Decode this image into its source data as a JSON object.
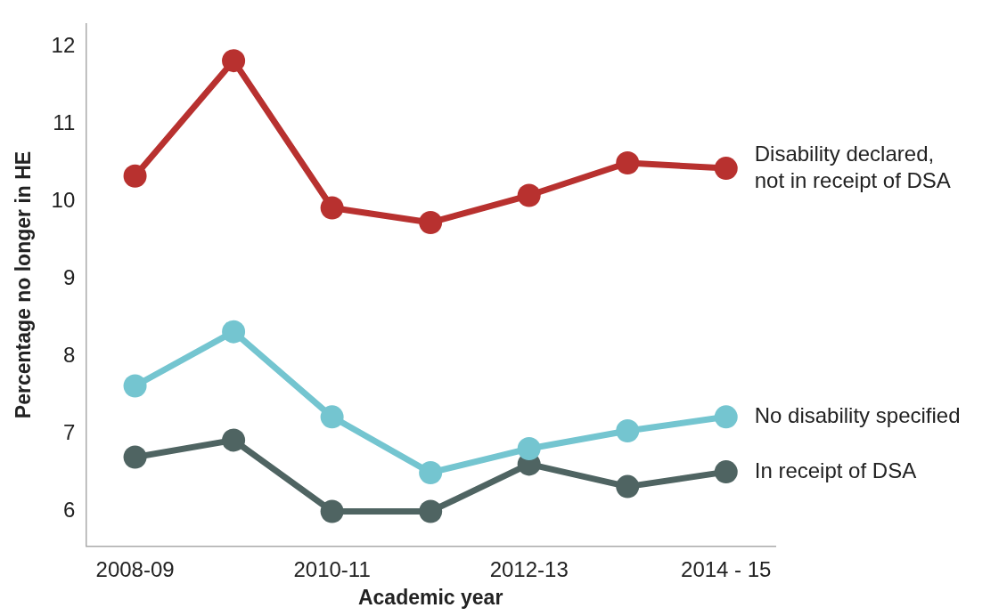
{
  "chart_data": {
    "type": "line",
    "xlabel": "Academic year",
    "ylabel": "Percentage no longer in HE",
    "categories": [
      "2008-09",
      null,
      "2010-11",
      null,
      "2012-13",
      null,
      "2014 - 15"
    ],
    "ylim": [
      5.55,
      12.3
    ],
    "yticks": [
      6,
      7,
      8,
      9,
      10,
      11,
      12
    ],
    "grid": false,
    "legend": false,
    "marker": "circle",
    "line_style": "solid",
    "series": [
      {
        "name": "Disability declared, not in receipt of DSA",
        "color": "#b8312f",
        "values": [
          10.33,
          11.82,
          9.92,
          9.73,
          10.08,
          10.5,
          10.43
        ]
      },
      {
        "name": "No disability specified",
        "color": "#74c5d0",
        "values": [
          7.62,
          8.32,
          7.22,
          6.5,
          6.81,
          7.04,
          7.22
        ]
      },
      {
        "name": "In receipt of DSA",
        "color": "#4f6462",
        "values": [
          6.7,
          6.92,
          6.0,
          6.0,
          6.61,
          6.32,
          6.51
        ]
      }
    ]
  }
}
